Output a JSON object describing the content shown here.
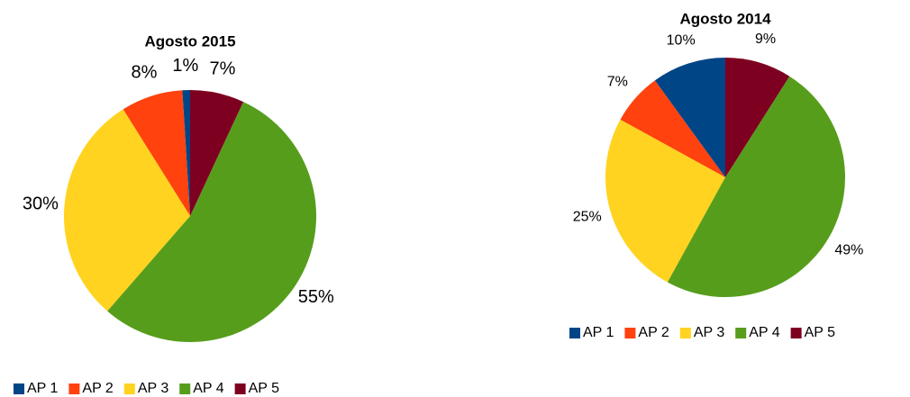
{
  "chart_data": [
    {
      "type": "pie",
      "title": "Agosto 2015",
      "categories": [
        "AP 1",
        "AP 2",
        "AP 3",
        "AP 4",
        "AP 5"
      ],
      "values": [
        1,
        8,
        30,
        55,
        7
      ],
      "value_labels": [
        "1%",
        "8%",
        "30%",
        "55%",
        "7%"
      ],
      "colors": [
        "#004586",
        "#ff420e",
        "#ffd320",
        "#579d1c",
        "#7e0021"
      ]
    },
    {
      "type": "pie",
      "title": "Agosto 2014",
      "categories": [
        "AP 1",
        "AP 2",
        "AP 3",
        "AP 4",
        "AP 5"
      ],
      "values": [
        10,
        7,
        25,
        49,
        9
      ],
      "value_labels": [
        "10%",
        "7%",
        "25%",
        "49%",
        "9%"
      ],
      "colors": [
        "#004586",
        "#ff420e",
        "#ffd320",
        "#579d1c",
        "#7e0021"
      ]
    }
  ]
}
